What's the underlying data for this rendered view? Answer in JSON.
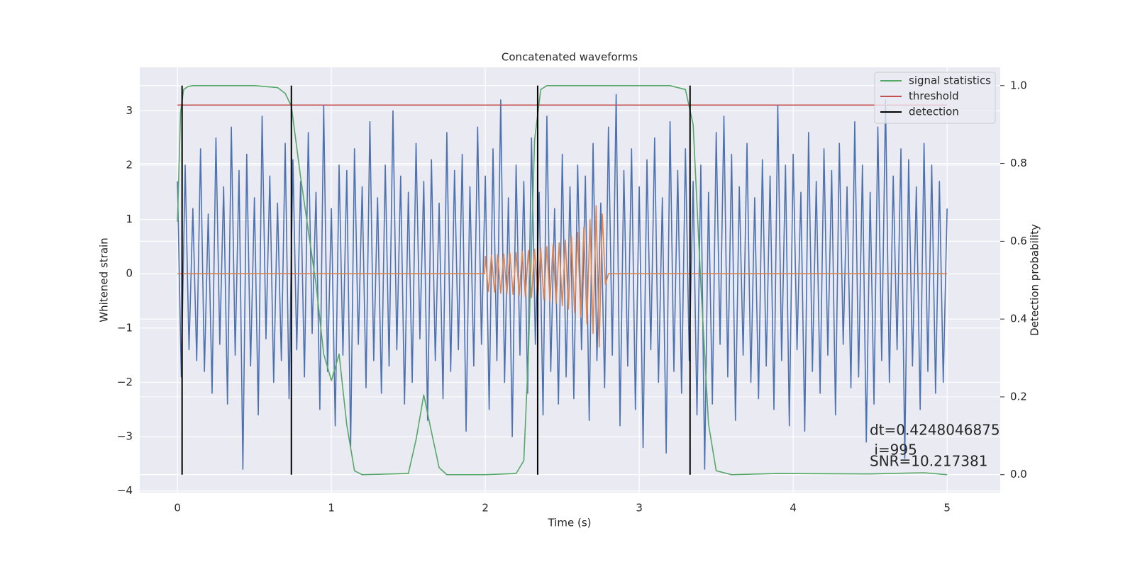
{
  "chart_data": {
    "type": "line",
    "title": "Concatenated waveforms",
    "xlabel": "Time (s)",
    "ylabel": "Whitened strain",
    "y2label": "Detection probability",
    "xlim": [
      -0.245,
      5.345
    ],
    "ylim": [
      -4.03,
      3.8
    ],
    "y2lim": [
      -0.046,
      1.047
    ],
    "xticks": [
      0,
      1,
      2,
      3,
      4,
      5
    ],
    "yticks": [
      {
        "value": -4,
        "label": "−4"
      },
      {
        "value": -3,
        "label": "−3"
      },
      {
        "value": -2,
        "label": "−2"
      },
      {
        "value": -1,
        "label": "−1"
      },
      0,
      1,
      2,
      3
    ],
    "y2ticks": [
      {
        "value": 0,
        "label": "0.0"
      },
      {
        "value": 0.2,
        "label": "0.2"
      },
      {
        "value": 0.4,
        "label": "0.4"
      },
      {
        "value": 0.6,
        "label": "0.6"
      },
      {
        "value": 0.8,
        "label": "0.8"
      },
      {
        "value": 1,
        "label": "1.0"
      }
    ],
    "grid": true,
    "legend": "upper right",
    "series": [
      {
        "color": "#4c72b0",
        "x": [
          0,
          0.025,
          0.05,
          0.075,
          0.1,
          0.125,
          0.15,
          0.175,
          0.2,
          0.225,
          0.25,
          0.275,
          0.3,
          0.325,
          0.35,
          0.375,
          0.4,
          0.425,
          0.45,
          0.475,
          0.5,
          0.525,
          0.55,
          0.575,
          0.6,
          0.625,
          0.65,
          0.675,
          0.7,
          0.725,
          0.75,
          0.775,
          0.8,
          0.825,
          0.85,
          0.875,
          0.9,
          0.925,
          0.95,
          0.975,
          1,
          1.025,
          1.05,
          1.075,
          1.1,
          1.125,
          1.15,
          1.175,
          1.2,
          1.225,
          1.25,
          1.275,
          1.3,
          1.325,
          1.35,
          1.375,
          1.4,
          1.425,
          1.45,
          1.475,
          1.5,
          1.525,
          1.55,
          1.575,
          1.6,
          1.625,
          1.65,
          1.675,
          1.7,
          1.725,
          1.75,
          1.775,
          1.8,
          1.825,
          1.85,
          1.875,
          1.9,
          1.925,
          1.95,
          1.975,
          2,
          2.025,
          2.05,
          2.075,
          2.1,
          2.125,
          2.15,
          2.175,
          2.2,
          2.225,
          2.25,
          2.275,
          2.3,
          2.325,
          2.35,
          2.375,
          2.4,
          2.425,
          2.45,
          2.475,
          2.5,
          2.525,
          2.55,
          2.575,
          2.6,
          2.625,
          2.65,
          2.675,
          2.7,
          2.725,
          2.75,
          2.775,
          2.8,
          2.825,
          2.85,
          2.875,
          2.9,
          2.925,
          2.95,
          2.975,
          3,
          3.025,
          3.05,
          3.075,
          3.1,
          3.125,
          3.15,
          3.175,
          3.2,
          3.225,
          3.25,
          3.275,
          3.3,
          3.325,
          3.35,
          3.375,
          3.4,
          3.425,
          3.45,
          3.475,
          3.5,
          3.525,
          3.55,
          3.575,
          3.6,
          3.625,
          3.65,
          3.675,
          3.7,
          3.725,
          3.75,
          3.775,
          3.8,
          3.825,
          3.85,
          3.875,
          3.9,
          3.925,
          3.95,
          3.975,
          4,
          4.025,
          4.05,
          4.075,
          4.1,
          4.125,
          4.15,
          4.175,
          4.2,
          4.225,
          4.25,
          4.275,
          4.3,
          4.325,
          4.35,
          4.375,
          4.4,
          4.425,
          4.45,
          4.475,
          4.5,
          4.525,
          4.55,
          4.575,
          4.6,
          4.625,
          4.65,
          4.675,
          4.7,
          4.725,
          4.75,
          4.775,
          4.8,
          4.825,
          4.85,
          4.875,
          4.9,
          4.925,
          4.95,
          4.975,
          5
        ],
        "values": [
          1.7,
          -1.9,
          2.0,
          -1.4,
          1.2,
          -1.6,
          2.3,
          -1.8,
          1.1,
          -2.2,
          2.5,
          -1.3,
          1.6,
          -2.4,
          2.7,
          -1.5,
          1.9,
          -3.6,
          2.2,
          -1.7,
          1.4,
          -2.6,
          2.9,
          -1.2,
          1.8,
          -2.0,
          1.3,
          -1.6,
          2.4,
          -2.3,
          2.1,
          -1.4,
          1.7,
          -1.9,
          2.6,
          -1.1,
          1.5,
          -2.5,
          3.1,
          -1.8,
          1.2,
          -2.8,
          2.0,
          -1.5,
          1.9,
          -3.2,
          2.3,
          -1.3,
          1.6,
          -2.1,
          2.8,
          -1.6,
          1.4,
          -2.2,
          2.0,
          -1.7,
          3.0,
          -1.4,
          1.8,
          -2.4,
          1.5,
          -2.0,
          2.4,
          -1.2,
          1.7,
          -2.7,
          2.1,
          -1.6,
          1.3,
          -2.3,
          2.6,
          -1.8,
          1.9,
          -1.4,
          2.2,
          -2.9,
          1.6,
          -1.7,
          2.7,
          -1.3,
          1.8,
          -2.5,
          2.3,
          -1.6,
          3.2,
          -2.0,
          1.4,
          -3.0,
          2.0,
          -1.5,
          1.7,
          -2.2,
          2.5,
          -1.3,
          1.5,
          -2.6,
          2.9,
          -1.8,
          1.2,
          -2.4,
          2.2,
          -1.9,
          1.6,
          -2.3,
          2.0,
          -1.4,
          1.8,
          -2.7,
          2.4,
          -1.6,
          1.3,
          -2.1,
          2.7,
          -1.5,
          3.3,
          -2.8,
          1.9,
          -1.7,
          2.3,
          -2.5,
          1.6,
          -3.2,
          2.1,
          -1.4,
          2.5,
          -2.0,
          1.4,
          -3.3,
          2.8,
          -1.8,
          1.9,
          -2.2,
          2.3,
          -1.6,
          1.7,
          -2.6,
          2.0,
          -3.6,
          1.5,
          -2.4,
          2.6,
          -1.3,
          2.9,
          -1.9,
          2.2,
          -2.7,
          1.6,
          -1.5,
          2.4,
          -2.0,
          1.4,
          -2.3,
          2.1,
          -1.7,
          1.8,
          -2.5,
          3.1,
          -1.6,
          2.0,
          -2.8,
          2.2,
          -1.4,
          1.5,
          -2.9,
          2.6,
          -1.8,
          1.7,
          -2.2,
          2.3,
          -1.5,
          1.9,
          -2.6,
          2.4,
          -1.3,
          1.6,
          -2.1,
          2.8,
          -1.9,
          2.0,
          -3.1,
          1.5,
          -2.4,
          2.7,
          -1.6,
          3.2,
          -2.0,
          1.8,
          -1.4,
          2.3,
          -3.4,
          2.1,
          -1.7,
          1.6,
          -2.5,
          2.4,
          -1.8,
          2.0,
          -2.2,
          1.7,
          -2.0,
          1.2
        ]
      },
      {
        "color": "#dd8452",
        "x": [
          0,
          1.995,
          2.0,
          2.02,
          2.04,
          2.06,
          2.08,
          2.1,
          2.12,
          2.14,
          2.16,
          2.18,
          2.2,
          2.22,
          2.24,
          2.26,
          2.28,
          2.3,
          2.32,
          2.34,
          2.36,
          2.38,
          2.4,
          2.42,
          2.44,
          2.46,
          2.48,
          2.5,
          2.52,
          2.54,
          2.56,
          2.58,
          2.6,
          2.62,
          2.64,
          2.66,
          2.68,
          2.7,
          2.72,
          2.74,
          2.76,
          2.78,
          2.8,
          5
        ],
        "values": [
          0,
          0,
          0.32,
          -0.33,
          0.34,
          -0.34,
          0.35,
          -0.36,
          0.36,
          -0.37,
          0.38,
          -0.38,
          0.39,
          -0.4,
          0.41,
          -0.42,
          0.43,
          -0.44,
          0.45,
          -0.46,
          0.47,
          -0.48,
          0.5,
          -0.51,
          0.53,
          -0.55,
          0.57,
          -0.59,
          0.62,
          -0.65,
          0.68,
          -0.72,
          0.76,
          -0.8,
          0.86,
          -0.92,
          1.0,
          -1.1,
          1.25,
          -1.35,
          1.1,
          -0.2,
          0,
          0
        ]
      },
      {
        "name": "signal statistics",
        "color": "#55a868",
        "axis": "y2",
        "x": [
          0,
          0.02,
          0.04,
          0.07,
          0.1,
          0.5,
          0.65,
          0.7,
          0.74,
          0.8,
          0.9,
          0.95,
          1.0,
          1.05,
          1.1,
          1.15,
          1.2,
          1.5,
          1.55,
          1.6,
          1.65,
          1.7,
          1.75,
          2.0,
          2.2,
          2.25,
          2.28,
          2.32,
          2.36,
          2.4,
          2.5,
          3.2,
          3.3,
          3.35,
          3.4,
          3.45,
          3.5,
          3.6,
          3.9,
          4.5,
          4.85,
          5.0
        ],
        "values": [
          0.65,
          0.93,
          0.99,
          0.998,
          1.0,
          1.0,
          0.995,
          0.98,
          0.947,
          0.765,
          0.49,
          0.31,
          0.242,
          0.31,
          0.128,
          0.01,
          0.0,
          0.003,
          0.09,
          0.205,
          0.11,
          0.018,
          0.0,
          0.0,
          0.003,
          0.036,
          0.31,
          0.86,
          0.99,
          1.0,
          1.0,
          1.0,
          0.99,
          0.9,
          0.49,
          0.13,
          0.01,
          0.0,
          0.003,
          0.002,
          0.005,
          0.0
        ]
      },
      {
        "name": "threshold",
        "color": "#c44e52",
        "axis": "y2",
        "x": [
          0,
          5
        ],
        "values": [
          0.95,
          0.95
        ]
      },
      {
        "name": "detection",
        "color": "#000000",
        "axis": "y2",
        "type": "vlines",
        "x": [
          0.03,
          0.74,
          2.34,
          3.33
        ],
        "ymin": 0,
        "ymax": 1
      }
    ],
    "annotations": [
      "dt=0.4248046875",
      " i=995",
      "SNR=10.217381"
    ]
  }
}
